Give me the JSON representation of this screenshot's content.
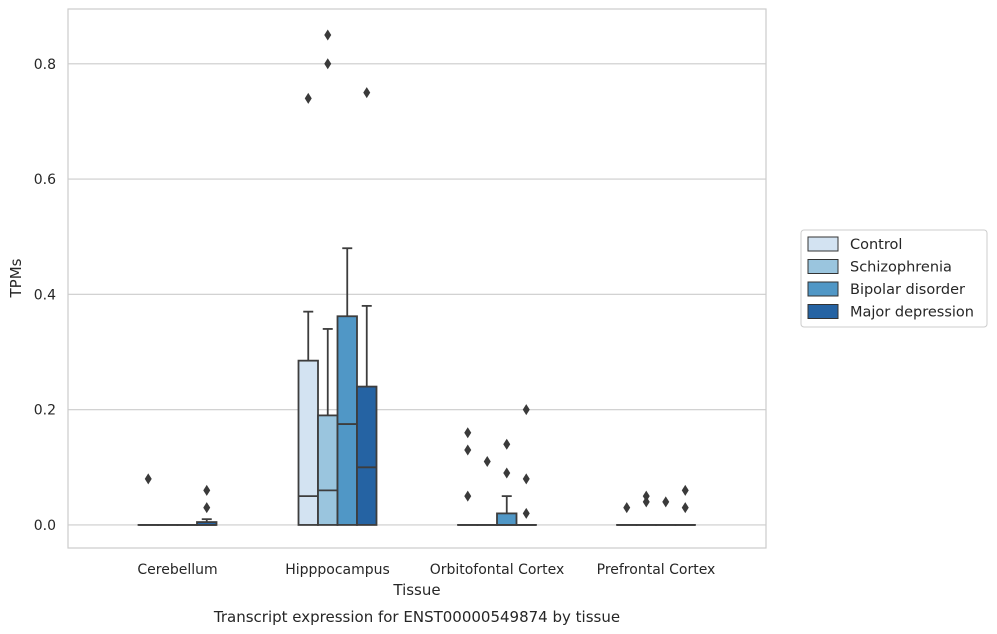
{
  "chart_data": {
    "type": "box",
    "title": "",
    "caption": "Transcript expression for ENST00000549874 by tissue",
    "xlabel": "Tissue",
    "ylabel": "TPMs",
    "ylim": [
      -0.04,
      0.895
    ],
    "yticks": [
      0.0,
      0.2,
      0.4,
      0.6,
      0.8
    ],
    "ytick_labels": [
      "0.0",
      "0.2",
      "0.4",
      "0.6",
      "0.8"
    ],
    "grid": "horizontal",
    "legend_position": "right",
    "categories": [
      "Cerebellum",
      "Hipppocampus",
      "Orbitofontal Cortex",
      "Prefrontal Cortex"
    ],
    "series": [
      {
        "name": "Control",
        "color": "#d3e3f2",
        "boxes": [
          {
            "q1": 0,
            "median": 0,
            "q3": 0,
            "whisker_low": 0,
            "whisker_high": 0,
            "outliers": [
              0.08
            ]
          },
          {
            "q1": 0,
            "median": 0.05,
            "q3": 0.285,
            "whisker_low": 0,
            "whisker_high": 0.37,
            "outliers": [
              0.74
            ]
          },
          {
            "q1": 0,
            "median": 0,
            "q3": 0,
            "whisker_low": 0,
            "whisker_high": 0,
            "outliers": [
              0.16,
              0.13,
              0.05
            ]
          },
          {
            "q1": 0,
            "median": 0,
            "q3": 0,
            "whisker_low": 0,
            "whisker_high": 0,
            "outliers": [
              0.03
            ]
          }
        ]
      },
      {
        "name": "Schizophrenia",
        "color": "#9ac5de",
        "boxes": [
          {
            "q1": 0,
            "median": 0,
            "q3": 0,
            "whisker_low": 0,
            "whisker_high": 0,
            "outliers": []
          },
          {
            "q1": 0,
            "median": 0.06,
            "q3": 0.19,
            "whisker_low": 0,
            "whisker_high": 0.34,
            "outliers": [
              0.85,
              0.8
            ]
          },
          {
            "q1": 0,
            "median": 0,
            "q3": 0,
            "whisker_low": 0,
            "whisker_high": 0,
            "outliers": [
              0.11
            ]
          },
          {
            "q1": 0,
            "median": 0,
            "q3": 0,
            "whisker_low": 0,
            "whisker_high": 0,
            "outliers": [
              0.05,
              0.04
            ]
          }
        ]
      },
      {
        "name": "Bipolar disorder",
        "color": "#5097c6",
        "boxes": [
          {
            "q1": 0,
            "median": 0,
            "q3": 0,
            "whisker_low": 0,
            "whisker_high": 0,
            "outliers": []
          },
          {
            "q1": 0,
            "median": 0.175,
            "q3": 0.362,
            "whisker_low": 0,
            "whisker_high": 0.48,
            "outliers": []
          },
          {
            "q1": 0,
            "median": 0,
            "q3": 0.02,
            "whisker_low": 0,
            "whisker_high": 0.05,
            "outliers": [
              0.14,
              0.09
            ]
          },
          {
            "q1": 0,
            "median": 0,
            "q3": 0,
            "whisker_low": 0,
            "whisker_high": 0,
            "outliers": [
              0.04
            ]
          }
        ]
      },
      {
        "name": "Major depression",
        "color": "#2563a3",
        "boxes": [
          {
            "q1": 0,
            "median": 0,
            "q3": 0.005,
            "whisker_low": 0,
            "whisker_high": 0.01,
            "outliers": [
              0.06,
              0.03
            ]
          },
          {
            "q1": 0,
            "median": 0.1,
            "q3": 0.24,
            "whisker_low": 0,
            "whisker_high": 0.38,
            "outliers": [
              0.75
            ]
          },
          {
            "q1": 0,
            "median": 0,
            "q3": 0,
            "whisker_low": 0,
            "whisker_high": 0,
            "outliers": [
              0.2,
              0.08,
              0.02
            ]
          },
          {
            "q1": 0,
            "median": 0,
            "q3": 0,
            "whisker_low": 0,
            "whisker_high": 0,
            "outliers": [
              0.06,
              0.03
            ]
          }
        ]
      }
    ]
  }
}
